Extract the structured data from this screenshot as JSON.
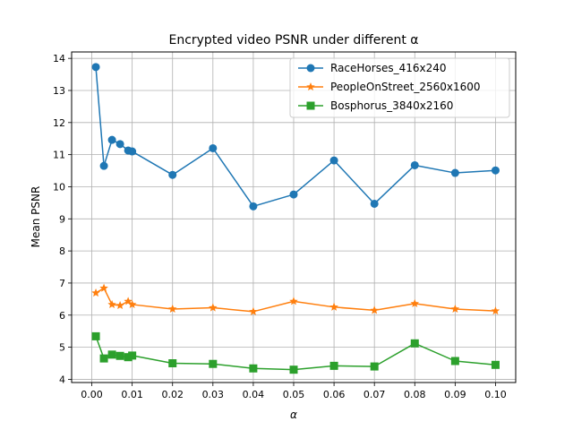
{
  "chart_data": {
    "type": "line",
    "title": "Encrypted video PSNR under different α",
    "xlabel": "α",
    "ylabel": "Mean PSNR",
    "xlim": [
      -0.005,
      0.105
    ],
    "ylim": [
      3.9,
      14.2
    ],
    "x_ticks": [
      0.0,
      0.01,
      0.02,
      0.03,
      0.04,
      0.05,
      0.06,
      0.07,
      0.08,
      0.09,
      0.1
    ],
    "x_tick_labels": [
      "0.00",
      "0.01",
      "0.02",
      "0.03",
      "0.04",
      "0.05",
      "0.06",
      "0.07",
      "0.08",
      "0.09",
      "0.10"
    ],
    "y_ticks": [
      4,
      5,
      6,
      7,
      8,
      9,
      10,
      11,
      12,
      13,
      14
    ],
    "y_tick_labels": [
      "4",
      "5",
      "6",
      "7",
      "8",
      "9",
      "10",
      "11",
      "12",
      "13",
      "14"
    ],
    "grid": true,
    "legend_position": "top-right",
    "x": [
      0.001,
      0.003,
      0.005,
      0.007,
      0.009,
      0.01,
      0.02,
      0.03,
      0.04,
      0.05,
      0.06,
      0.07,
      0.08,
      0.09,
      0.1
    ],
    "series": [
      {
        "name": "RaceHorses_416x240",
        "color": "#1f77b4",
        "marker": "circle",
        "values": [
          13.73,
          10.65,
          11.46,
          11.33,
          11.13,
          11.1,
          10.37,
          11.2,
          9.39,
          9.76,
          10.82,
          9.47,
          10.67,
          10.43,
          10.51
        ]
      },
      {
        "name": "PeopleOnStreet_2560x1600",
        "color": "#ff7f0e",
        "marker": "star",
        "values": [
          6.69,
          6.84,
          6.33,
          6.3,
          6.43,
          6.33,
          6.19,
          6.23,
          6.11,
          6.43,
          6.25,
          6.15,
          6.36,
          6.19,
          6.13
        ]
      },
      {
        "name": "Bosphorus_3840x2160",
        "color": "#2ca02c",
        "marker": "square",
        "values": [
          5.34,
          4.65,
          4.77,
          4.73,
          4.69,
          4.74,
          4.5,
          4.48,
          4.34,
          4.3,
          4.42,
          4.4,
          5.12,
          4.57,
          4.45
        ]
      }
    ]
  }
}
